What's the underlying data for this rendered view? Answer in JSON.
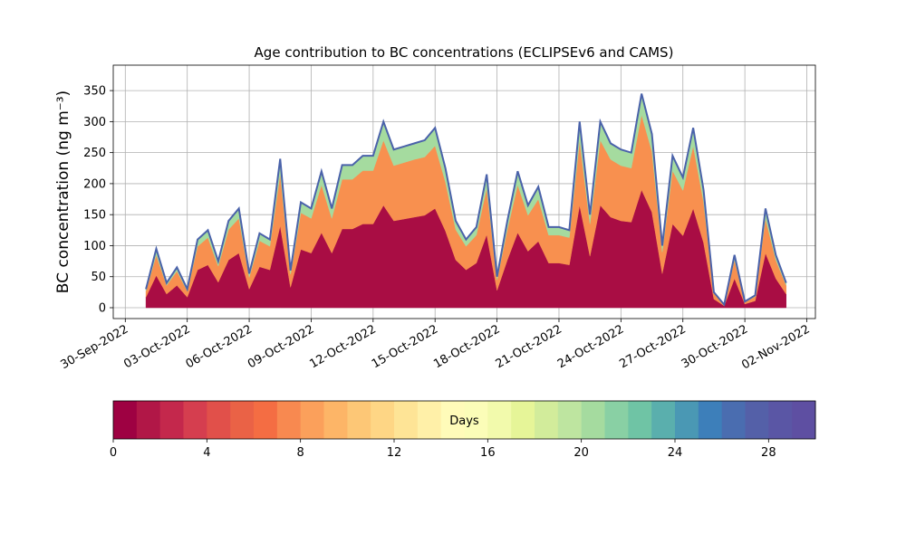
{
  "chart_data": {
    "type": "stacked_area",
    "title": "Age contribution to BC concentrations (ECLIPSEv6 and CAMS)",
    "y_label": "BC concentration (ng m⁻³)",
    "x": [
      "2022-10-01T00:00",
      "2022-10-01T12:00",
      "2022-10-02T00:00",
      "2022-10-02T12:00",
      "2022-10-03T00:00",
      "2022-10-03T12:00",
      "2022-10-04T00:00",
      "2022-10-04T12:00",
      "2022-10-05T00:00",
      "2022-10-05T12:00",
      "2022-10-06T00:00",
      "2022-10-06T12:00",
      "2022-10-07T00:00",
      "2022-10-07T12:00",
      "2022-10-08T00:00",
      "2022-10-08T12:00",
      "2022-10-09T00:00",
      "2022-10-09T12:00",
      "2022-10-10T00:00",
      "2022-10-10T12:00",
      "2022-10-11T00:00",
      "2022-10-11T12:00",
      "2022-10-12T00:00",
      "2022-10-12T12:00",
      "2022-10-13T00:00",
      "2022-10-13T12:00",
      "2022-10-14T00:00",
      "2022-10-14T12:00",
      "2022-10-15T00:00",
      "2022-10-15T12:00",
      "2022-10-16T00:00",
      "2022-10-16T12:00",
      "2022-10-17T00:00",
      "2022-10-17T12:00",
      "2022-10-18T00:00",
      "2022-10-18T12:00",
      "2022-10-19T00:00",
      "2022-10-19T12:00",
      "2022-10-20T00:00",
      "2022-10-20T12:00",
      "2022-10-21T00:00",
      "2022-10-21T12:00",
      "2022-10-22T00:00",
      "2022-10-22T12:00",
      "2022-10-23T00:00",
      "2022-10-23T12:00",
      "2022-10-24T00:00",
      "2022-10-24T12:00",
      "2022-10-25T00:00",
      "2022-10-25T12:00",
      "2022-10-26T00:00",
      "2022-10-26T12:00",
      "2022-10-27T00:00",
      "2022-10-27T12:00",
      "2022-10-28T00:00",
      "2022-10-28T12:00",
      "2022-10-29T00:00",
      "2022-10-29T12:00",
      "2022-10-30T00:00",
      "2022-10-30T12:00",
      "2022-10-31T00:00",
      "2022-10-31T12:00",
      "2022-11-01T00:00"
    ],
    "series": [
      {
        "color": "#a90d44",
        "values": [
          17,
          52,
          22,
          36,
          17,
          61,
          69,
          41,
          77,
          88,
          30,
          66,
          61,
          132,
          33,
          94,
          88,
          121,
          88,
          127,
          127,
          135,
          135,
          165,
          140,
          143,
          146,
          149,
          160,
          124,
          77,
          61,
          72,
          118,
          28,
          77,
          121,
          91,
          107,
          72,
          72,
          69,
          165,
          83,
          165,
          146,
          140,
          138,
          190,
          154,
          55,
          135,
          116,
          160,
          105,
          14,
          3,
          47,
          6,
          11,
          88,
          47,
          22
        ]
      },
      {
        "color": "#f8904f",
        "values": [
          10,
          33,
          14,
          23,
          10,
          38,
          44,
          26,
          49,
          56,
          19,
          42,
          38,
          84,
          21,
          59,
          56,
          77,
          56,
          80,
          80,
          86,
          86,
          105,
          89,
          91,
          93,
          94,
          101,
          79,
          49,
          38,
          45,
          75,
          17,
          49,
          77,
          58,
          68,
          45,
          45,
          44,
          105,
          52,
          105,
          93,
          89,
          87,
          121,
          98,
          35,
          86,
          73,
          101,
          66,
          9,
          2,
          30,
          3,
          7,
          56,
          30,
          14
        ]
      },
      {
        "color": "#a5db9f",
        "values": [
          3,
          10,
          4,
          6,
          3,
          11,
          12,
          8,
          14,
          16,
          6,
          12,
          11,
          24,
          6,
          17,
          16,
          22,
          16,
          23,
          23,
          24,
          24,
          30,
          26,
          26,
          26,
          27,
          29,
          22,
          14,
          11,
          13,
          22,
          5,
          14,
          22,
          16,
          20,
          13,
          13,
          12,
          30,
          15,
          30,
          26,
          26,
          25,
          34,
          28,
          10,
          24,
          21,
          29,
          19,
          2,
          0,
          8,
          1,
          2,
          16,
          8,
          4
        ]
      }
    ],
    "edge_color": "#4a62aa",
    "xlim": [
      "2022-09-29T10:00",
      "2022-11-02T10:00"
    ],
    "xticks": [
      {
        "value": "2022-09-30",
        "label": "30-Sep-2022"
      },
      {
        "value": "2022-10-03",
        "label": "03-Oct-2022"
      },
      {
        "value": "2022-10-06",
        "label": "06-Oct-2022"
      },
      {
        "value": "2022-10-09",
        "label": "09-Oct-2022"
      },
      {
        "value": "2022-10-12",
        "label": "12-Oct-2022"
      },
      {
        "value": "2022-10-15",
        "label": "15-Oct-2022"
      },
      {
        "value": "2022-10-18",
        "label": "18-Oct-2022"
      },
      {
        "value": "2022-10-21",
        "label": "21-Oct-2022"
      },
      {
        "value": "2022-10-24",
        "label": "24-Oct-2022"
      },
      {
        "value": "2022-10-27",
        "label": "27-Oct-2022"
      },
      {
        "value": "2022-10-30",
        "label": "30-Oct-2022"
      },
      {
        "value": "2022-11-02",
        "label": "02-Nov-2022"
      }
    ],
    "ylim": [
      -17.5,
      391
    ],
    "yticks": [
      0,
      50,
      100,
      150,
      200,
      250,
      300,
      350
    ],
    "grid": true,
    "colorbar": {
      "label": "Days",
      "lim": [
        0,
        30
      ],
      "ticks": [
        0,
        4,
        8,
        12,
        16,
        20,
        24,
        28
      ],
      "colors": [
        "#9e0142",
        "#b11747",
        "#c4284c",
        "#d53e4f",
        "#e1504a",
        "#ea6246",
        "#f46d43",
        "#f88950",
        "#fba05b",
        "#fdb567",
        "#fdc776",
        "#fed685",
        "#fee496",
        "#fff0a8",
        "#fffbb9",
        "#fbfdb8",
        "#f2faac",
        "#e6f598",
        "#d2ec9b",
        "#bee5a0",
        "#a5db9f",
        "#89d0a4",
        "#6fc4a5",
        "#5aafad",
        "#4a98b4",
        "#3d7fba",
        "#4a6db0",
        "#5460a8",
        "#5a56a5",
        "#5e4fa2"
      ]
    }
  }
}
